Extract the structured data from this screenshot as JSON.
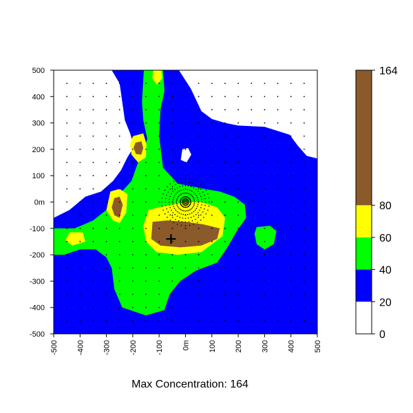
{
  "chart_data": {
    "type": "heatmap",
    "title": "",
    "caption": "Max Concentration: 164",
    "xlim": [
      -500,
      500
    ],
    "ylim": [
      -500,
      500
    ],
    "x_ticks": [
      {
        "value": -500,
        "label": "-500"
      },
      {
        "value": -400,
        "label": "-400"
      },
      {
        "value": -300,
        "label": "-300"
      },
      {
        "value": -200,
        "label": "-200"
      },
      {
        "value": -100,
        "label": "-100"
      },
      {
        "value": 0,
        "label": "0m"
      },
      {
        "value": 100,
        "label": "100"
      },
      {
        "value": 200,
        "label": "200"
      },
      {
        "value": 300,
        "label": "300"
      },
      {
        "value": 400,
        "label": "400"
      },
      {
        "value": 500,
        "label": "500"
      }
    ],
    "y_ticks": [
      {
        "value": 500,
        "label": "500"
      },
      {
        "value": 400,
        "label": "400"
      },
      {
        "value": 300,
        "label": "300"
      },
      {
        "value": 200,
        "label": "200"
      },
      {
        "value": 100,
        "label": "100"
      },
      {
        "value": 0,
        "label": "0m"
      },
      {
        "value": -100,
        "label": "-100"
      },
      {
        "value": -200,
        "label": "-200"
      },
      {
        "value": -300,
        "label": "-300"
      },
      {
        "value": -400,
        "label": "-400"
      },
      {
        "value": -500,
        "label": "-500"
      }
    ],
    "color_scale": {
      "breaks": [
        0,
        20,
        40,
        60,
        80,
        164
      ],
      "labels": [
        "0",
        "20",
        "40",
        "60",
        "80",
        "164"
      ],
      "colors": [
        "#ffffff",
        "#0000ff",
        "#00ff00",
        "#ffff00",
        "#8b5a2b"
      ]
    },
    "source_marker": {
      "x": -55,
      "y": -140,
      "symbol": "+"
    },
    "regions": [
      {
        "name": "low-zone-upper-left",
        "level": 0,
        "color": "#ffffff",
        "polygon": [
          [
            -500,
            500
          ],
          [
            -280,
            500
          ],
          [
            -250,
            450
          ],
          [
            -240,
            380
          ],
          [
            -230,
            310
          ],
          [
            -210,
            260
          ],
          [
            -195,
            210
          ],
          [
            -220,
            170
          ],
          [
            -245,
            120
          ],
          [
            -275,
            80
          ],
          [
            -320,
            40
          ],
          [
            -380,
            20
          ],
          [
            -440,
            -30
          ],
          [
            -500,
            -60
          ]
        ]
      },
      {
        "name": "low-zone-upper-right",
        "level": 0,
        "color": "#ffffff",
        "polygon": [
          [
            -95,
            500
          ],
          [
            -25,
            500
          ],
          [
            20,
            430
          ],
          [
            60,
            345
          ],
          [
            100,
            315
          ],
          [
            150,
            300
          ],
          [
            200,
            290
          ],
          [
            300,
            285
          ],
          [
            395,
            255
          ],
          [
            425,
            215
          ],
          [
            460,
            175
          ],
          [
            500,
            165
          ],
          [
            500,
            500
          ]
        ]
      },
      {
        "name": "low-zone-spot",
        "level": 0,
        "color": "#ffffff",
        "polygon": [
          [
            -12,
            200
          ],
          [
            10,
            205
          ],
          [
            22,
            180
          ],
          [
            4,
            150
          ],
          [
            -18,
            160
          ]
        ]
      },
      {
        "name": "band-40-60-main-plume",
        "level": 40,
        "color": "#00ff00",
        "polygon": [
          [
            -158,
            500
          ],
          [
            -85,
            500
          ],
          [
            -80,
            420
          ],
          [
            -95,
            350
          ],
          [
            -100,
            250
          ],
          [
            -85,
            130
          ],
          [
            -30,
            70
          ],
          [
            20,
            60
          ],
          [
            70,
            50
          ],
          [
            130,
            40
          ],
          [
            185,
            20
          ],
          [
            225,
            -10
          ],
          [
            230,
            -60
          ],
          [
            195,
            -110
          ],
          [
            160,
            -170
          ],
          [
            120,
            -230
          ],
          [
            40,
            -260
          ],
          [
            -20,
            -300
          ],
          [
            -60,
            -350
          ],
          [
            -80,
            -410
          ],
          [
            -150,
            -430
          ],
          [
            -240,
            -400
          ],
          [
            -270,
            -330
          ],
          [
            -280,
            -250
          ],
          [
            -300,
            -210
          ],
          [
            -340,
            -180
          ],
          [
            -400,
            -180
          ],
          [
            -460,
            -200
          ],
          [
            -500,
            -200
          ],
          [
            -500,
            -100
          ],
          [
            -420,
            -100
          ],
          [
            -350,
            -70
          ],
          [
            -300,
            -30
          ],
          [
            -250,
            30
          ],
          [
            -205,
            80
          ],
          [
            -180,
            150
          ],
          [
            -160,
            190
          ],
          [
            -145,
            240
          ],
          [
            -160,
            310
          ],
          [
            -165,
            380
          ]
        ]
      },
      {
        "name": "band-40-60-right-spot",
        "level": 40,
        "color": "#00ff00",
        "polygon": [
          [
            270,
            -95
          ],
          [
            320,
            -90
          ],
          [
            345,
            -110
          ],
          [
            335,
            -160
          ],
          [
            300,
            -180
          ],
          [
            270,
            -160
          ],
          [
            262,
            -120
          ]
        ]
      },
      {
        "name": "band-60-80-top",
        "level": 60,
        "color": "#ffff00",
        "polygon": [
          [
            -122,
            500
          ],
          [
            -92,
            500
          ],
          [
            -88,
            470
          ],
          [
            -108,
            445
          ],
          [
            -126,
            470
          ]
        ]
      },
      {
        "name": "band-60-80-upper-left",
        "level": 60,
        "color": "#ffff00",
        "polygon": [
          [
            -200,
            250
          ],
          [
            -160,
            260
          ],
          [
            -148,
            220
          ],
          [
            -150,
            170
          ],
          [
            -180,
            150
          ],
          [
            -205,
            180
          ],
          [
            -210,
            220
          ]
        ]
      },
      {
        "name": "band-60-80-left-middle",
        "level": 60,
        "color": "#ffff00",
        "polygon": [
          [
            -285,
            40
          ],
          [
            -250,
            50
          ],
          [
            -220,
            30
          ],
          [
            -225,
            -40
          ],
          [
            -250,
            -80
          ],
          [
            -275,
            -70
          ],
          [
            -300,
            -30
          ]
        ]
      },
      {
        "name": "band-60-80-lower-left",
        "level": 60,
        "color": "#ffff00",
        "polygon": [
          [
            -440,
            -115
          ],
          [
            -390,
            -115
          ],
          [
            -380,
            -150
          ],
          [
            -430,
            -165
          ],
          [
            -455,
            -145
          ]
        ]
      },
      {
        "name": "band-60-80-central",
        "level": 60,
        "color": "#ffff00",
        "polygon": [
          [
            -140,
            -30
          ],
          [
            -80,
            -15
          ],
          [
            0,
            0
          ],
          [
            60,
            0
          ],
          [
            120,
            -20
          ],
          [
            150,
            -60
          ],
          [
            140,
            -130
          ],
          [
            60,
            -190
          ],
          [
            -30,
            -200
          ],
          [
            -110,
            -190
          ],
          [
            -150,
            -150
          ],
          [
            -160,
            -90
          ]
        ]
      },
      {
        "name": "band-80-164-upper-left",
        "level": 80,
        "color": "#8b5a2b",
        "polygon": [
          [
            -190,
            225
          ],
          [
            -167,
            230
          ],
          [
            -160,
            205
          ],
          [
            -168,
            180
          ],
          [
            -188,
            182
          ],
          [
            -197,
            205
          ]
        ]
      },
      {
        "name": "band-80-164-left-middle",
        "level": 80,
        "color": "#8b5a2b",
        "polygon": [
          [
            -270,
            15
          ],
          [
            -250,
            20
          ],
          [
            -238,
            -10
          ],
          [
            -250,
            -60
          ],
          [
            -270,
            -50
          ],
          [
            -280,
            -20
          ]
        ]
      },
      {
        "name": "band-80-164-central",
        "level": 80,
        "color": "#8b5a2b",
        "polygon": [
          [
            -125,
            -75
          ],
          [
            -70,
            -70
          ],
          [
            0,
            -75
          ],
          [
            70,
            -85
          ],
          [
            130,
            -100
          ],
          [
            120,
            -140
          ],
          [
            60,
            -165
          ],
          [
            -20,
            -172
          ],
          [
            -95,
            -165
          ],
          [
            -130,
            -140
          ]
        ]
      }
    ]
  }
}
